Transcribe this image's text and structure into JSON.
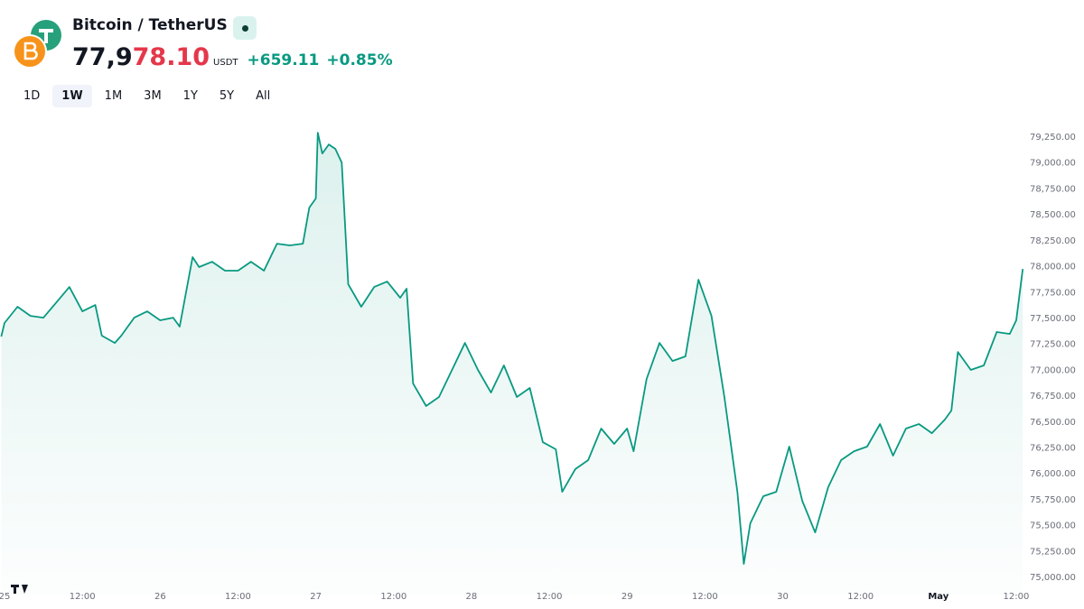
{
  "header": {
    "title": "Bitcoin / TetherUS",
    "price": "77,978.10",
    "unit": "USDT",
    "change": "+659.11",
    "change_pct": "+0.85%"
  },
  "ranges": [
    "1D",
    "1W",
    "1M",
    "3M",
    "1Y",
    "5Y",
    "All"
  ],
  "active_range": "1W",
  "chart_data": {
    "type": "area",
    "color": "#089981",
    "x": [
      -0.5,
      0,
      2,
      4,
      6,
      8,
      10,
      12,
      14,
      15,
      17,
      18,
      20,
      22,
      24,
      26,
      27,
      29,
      30,
      32,
      34,
      36,
      38,
      40,
      42,
      44,
      46,
      47,
      48,
      48.3,
      49,
      50,
      51,
      52,
      53,
      55,
      57,
      59,
      61,
      62,
      63,
      65,
      67,
      69,
      71,
      73,
      75,
      77,
      79,
      81,
      83,
      85,
      86,
      88,
      90,
      92,
      94,
      96,
      97,
      99,
      101,
      103,
      105,
      107,
      109,
      111,
      113,
      114,
      115,
      117,
      119,
      121,
      123,
      125,
      127,
      129,
      131,
      133,
      135,
      137,
      139,
      141,
      143,
      145,
      146,
      147,
      149,
      151,
      153,
      155,
      156,
      157
    ],
    "series": [
      {
        "name": "Bitcoin / TetherUS",
        "values": [
          77325,
          77456,
          77613,
          77525,
          77508,
          77656,
          77804,
          77569,
          77630,
          77334,
          77264,
          77334,
          77508,
          77569,
          77482,
          77508,
          77421,
          78092,
          77996,
          78048,
          77961,
          77961,
          78048,
          77961,
          78222,
          78205,
          78222,
          78570,
          78658,
          79293,
          79093,
          79180,
          79137,
          79006,
          77830,
          77613,
          77804,
          77856,
          77700,
          77787,
          76872,
          76655,
          76742,
          77003,
          77264,
          77003,
          76785,
          77047,
          76742,
          76829,
          76306,
          76237,
          75827,
          76045,
          76132,
          76437,
          76289,
          76437,
          76219,
          76916,
          77264,
          77090,
          77134,
          77874,
          77525,
          76742,
          75827,
          75131,
          75523,
          75784,
          75827,
          76263,
          75740,
          75435,
          75871,
          76132,
          76219,
          76263,
          76481,
          76176,
          76437,
          76481,
          76393,
          76524,
          76611,
          77177,
          77003,
          77047,
          77369,
          77351,
          77482,
          77978
        ]
      }
    ],
    "xlim": [
      -0.7,
      156.7
    ],
    "ylim": [
      74826,
      79442
    ],
    "xticks": [
      {
        "value": 0,
        "label": "25"
      },
      {
        "value": 12,
        "label": "12:00"
      },
      {
        "value": 24,
        "label": "26"
      },
      {
        "value": 36,
        "label": "12:00"
      },
      {
        "value": 48,
        "label": "27"
      },
      {
        "value": 60,
        "label": "12:00"
      },
      {
        "value": 72,
        "label": "28"
      },
      {
        "value": 84,
        "label": "12:00"
      },
      {
        "value": 96,
        "label": "29"
      },
      {
        "value": 108,
        "label": "12:00"
      },
      {
        "value": 120,
        "label": "30"
      },
      {
        "value": 132,
        "label": "12:00"
      },
      {
        "value": 144,
        "label": "May"
      },
      {
        "value": 156,
        "label": "12:00"
      }
    ],
    "yticks": [
      {
        "value": 75000,
        "label": "75,000.00"
      },
      {
        "value": 75250,
        "label": "75,250.00"
      },
      {
        "value": 75500,
        "label": "75,500.00"
      },
      {
        "value": 75750,
        "label": "75,750.00"
      },
      {
        "value": 76000,
        "label": "76,000.00"
      },
      {
        "value": 76250,
        "label": "76,250.00"
      },
      {
        "value": 76500,
        "label": "76,500.00"
      },
      {
        "value": 76750,
        "label": "76,750.00"
      },
      {
        "value": 77000,
        "label": "77,000.00"
      },
      {
        "value": 77250,
        "label": "77,250.00"
      },
      {
        "value": 77500,
        "label": "77,500.00"
      },
      {
        "value": 77750,
        "label": "77,750.00"
      },
      {
        "value": 78000,
        "label": "78,000.00"
      },
      {
        "value": 78250,
        "label": "78,250.00"
      },
      {
        "value": 78500,
        "label": "78,500.00"
      },
      {
        "value": 78750,
        "label": "78,750.00"
      },
      {
        "value": 79000,
        "label": "79,000.00"
      },
      {
        "value": 79250,
        "label": "79,250.00"
      }
    ],
    "grid": false
  }
}
